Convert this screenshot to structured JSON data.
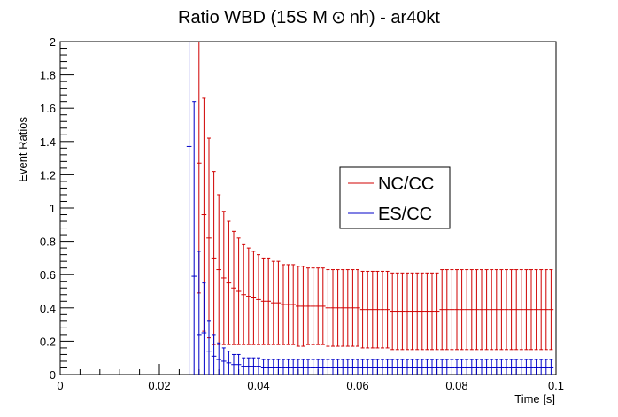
{
  "chart_data": {
    "type": "line",
    "title_pre": "Ratio WBD (15S M",
    "title_symbol": "⊙",
    "title_post": "nh) - ar40kt",
    "xlabel": "Time [s]",
    "ylabel": "Event Ratios",
    "xlim": [
      0,
      0.1
    ],
    "ylim": [
      0,
      2
    ],
    "x_ticks": [
      "0",
      "0.02",
      "0.04",
      "0.06",
      "0.08",
      "0.1"
    ],
    "y_ticks": [
      "0",
      "0.2",
      "0.4",
      "0.6",
      "0.8",
      "1",
      "1.2",
      "1.4",
      "1.6",
      "1.8",
      "2"
    ],
    "grid": false,
    "legend_position": "middle-right",
    "bin_width": 0.001,
    "series": [
      {
        "name": "NC/CC",
        "color": "#d00000",
        "x": [
          0.028,
          0.029,
          0.03,
          0.031,
          0.032,
          0.033,
          0.034,
          0.035,
          0.036,
          0.037,
          0.038,
          0.039,
          0.04,
          0.041,
          0.042,
          0.043,
          0.044,
          0.045,
          0.046,
          0.047,
          0.048,
          0.049,
          0.05,
          0.051,
          0.052,
          0.053,
          0.054,
          0.055,
          0.056,
          0.057,
          0.058,
          0.059,
          0.06,
          0.061,
          0.062,
          0.063,
          0.064,
          0.065,
          0.066,
          0.067,
          0.068,
          0.069,
          0.07,
          0.071,
          0.072,
          0.073,
          0.074,
          0.075,
          0.076,
          0.077,
          0.078,
          0.079,
          0.08,
          0.081,
          0.082,
          0.083,
          0.084,
          0.085,
          0.086,
          0.087,
          0.088,
          0.089,
          0.09,
          0.091,
          0.092,
          0.093,
          0.094,
          0.095,
          0.096,
          0.097,
          0.098,
          0.099
        ],
        "y": [
          1.27,
          0.96,
          0.82,
          0.7,
          0.63,
          0.58,
          0.55,
          0.52,
          0.5,
          0.48,
          0.47,
          0.46,
          0.45,
          0.44,
          0.44,
          0.43,
          0.43,
          0.42,
          0.42,
          0.42,
          0.41,
          0.41,
          0.41,
          0.41,
          0.41,
          0.41,
          0.4,
          0.4,
          0.4,
          0.4,
          0.4,
          0.4,
          0.4,
          0.39,
          0.39,
          0.39,
          0.39,
          0.39,
          0.39,
          0.38,
          0.38,
          0.38,
          0.38,
          0.38,
          0.38,
          0.38,
          0.38,
          0.38,
          0.38,
          0.39,
          0.39,
          0.39,
          0.39,
          0.39,
          0.39,
          0.39,
          0.39,
          0.39,
          0.39,
          0.39,
          0.39,
          0.39,
          0.39,
          0.39,
          0.39,
          0.39,
          0.39,
          0.39,
          0.39,
          0.39,
          0.39,
          0.39
        ],
        "yerr": [
          0.78,
          0.7,
          0.6,
          0.52,
          0.45,
          0.4,
          0.37,
          0.34,
          0.32,
          0.3,
          0.29,
          0.28,
          0.27,
          0.26,
          0.26,
          0.25,
          0.25,
          0.24,
          0.24,
          0.24,
          0.24,
          0.24,
          0.23,
          0.23,
          0.23,
          0.23,
          0.23,
          0.23,
          0.23,
          0.23,
          0.23,
          0.23,
          0.23,
          0.23,
          0.23,
          0.23,
          0.23,
          0.23,
          0.23,
          0.23,
          0.23,
          0.23,
          0.23,
          0.23,
          0.23,
          0.23,
          0.23,
          0.23,
          0.23,
          0.24,
          0.24,
          0.24,
          0.24,
          0.24,
          0.24,
          0.24,
          0.24,
          0.24,
          0.24,
          0.24,
          0.24,
          0.24,
          0.24,
          0.24,
          0.24,
          0.24,
          0.24,
          0.24,
          0.24,
          0.24,
          0.24,
          0.24
        ]
      },
      {
        "name": "ES/CC",
        "color": "#0000c8",
        "x": [
          0.026,
          0.027,
          0.028,
          0.029,
          0.03,
          0.031,
          0.032,
          0.033,
          0.034,
          0.035,
          0.036,
          0.037,
          0.038,
          0.039,
          0.04,
          0.041,
          0.042,
          0.043,
          0.044,
          0.045,
          0.046,
          0.047,
          0.048,
          0.049,
          0.05,
          0.051,
          0.052,
          0.053,
          0.054,
          0.055,
          0.056,
          0.057,
          0.058,
          0.059,
          0.06,
          0.061,
          0.062,
          0.063,
          0.064,
          0.065,
          0.066,
          0.067,
          0.068,
          0.069,
          0.07,
          0.071,
          0.072,
          0.073,
          0.074,
          0.075,
          0.076,
          0.077,
          0.078,
          0.079,
          0.08,
          0.081,
          0.082,
          0.083,
          0.084,
          0.085,
          0.086,
          0.087,
          0.088,
          0.089,
          0.09,
          0.091,
          0.092,
          0.093,
          0.094,
          0.095,
          0.096,
          0.097,
          0.098,
          0.099
        ],
        "y": [
          1.37,
          0.59,
          0.24,
          0.25,
          0.14,
          0.11,
          0.09,
          0.08,
          0.07,
          0.06,
          0.06,
          0.05,
          0.05,
          0.05,
          0.05,
          0.04,
          0.04,
          0.04,
          0.04,
          0.04,
          0.04,
          0.04,
          0.04,
          0.04,
          0.04,
          0.04,
          0.04,
          0.04,
          0.04,
          0.04,
          0.04,
          0.04,
          0.04,
          0.04,
          0.04,
          0.04,
          0.04,
          0.04,
          0.04,
          0.04,
          0.04,
          0.04,
          0.04,
          0.04,
          0.04,
          0.04,
          0.04,
          0.04,
          0.04,
          0.04,
          0.04,
          0.04,
          0.04,
          0.04,
          0.04,
          0.04,
          0.04,
          0.04,
          0.04,
          0.04,
          0.04,
          0.04,
          0.04,
          0.04,
          0.04,
          0.04,
          0.04,
          0.04,
          0.04,
          0.04,
          0.04,
          0.04,
          0.04,
          0.04
        ],
        "yerr": [
          1.37,
          1.05,
          0.5,
          0.3,
          0.18,
          0.13,
          0.1,
          0.08,
          0.07,
          0.06,
          0.06,
          0.05,
          0.05,
          0.05,
          0.05,
          0.05,
          0.05,
          0.05,
          0.05,
          0.05,
          0.05,
          0.05,
          0.05,
          0.05,
          0.05,
          0.05,
          0.05,
          0.05,
          0.05,
          0.05,
          0.05,
          0.05,
          0.05,
          0.05,
          0.05,
          0.05,
          0.05,
          0.05,
          0.05,
          0.05,
          0.05,
          0.05,
          0.05,
          0.05,
          0.05,
          0.05,
          0.05,
          0.05,
          0.05,
          0.05,
          0.05,
          0.05,
          0.05,
          0.05,
          0.05,
          0.05,
          0.05,
          0.05,
          0.05,
          0.05,
          0.05,
          0.05,
          0.05,
          0.05,
          0.05,
          0.05,
          0.05,
          0.05,
          0.05,
          0.05,
          0.05,
          0.05,
          0.05,
          0.05
        ]
      }
    ]
  }
}
